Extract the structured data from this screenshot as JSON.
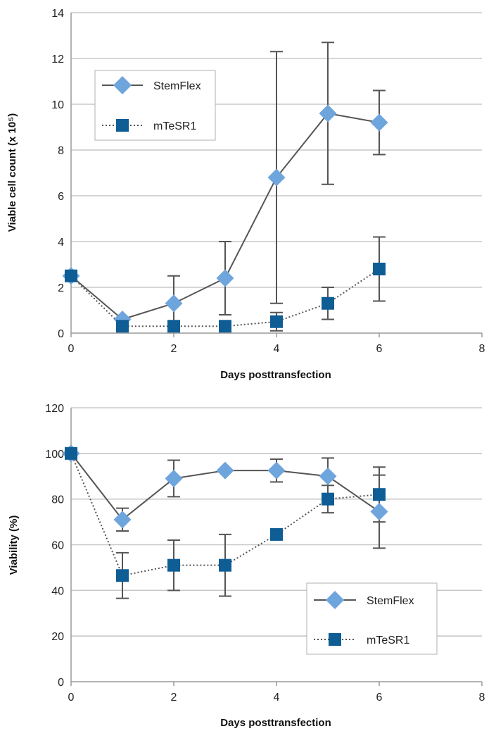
{
  "charts": [
    {
      "xlabel": "Days posttransfection",
      "ylabel": "Viable cell count (x 10⁵)",
      "legend": {
        "stemflex": "StemFlex",
        "mtesr1": "mTeSR1"
      }
    },
    {
      "xlabel": "Days posttransfection",
      "ylabel": "Viability (%)",
      "legend": {
        "stemflex": "StemFlex",
        "mtesr1": "mTeSR1"
      }
    }
  ],
  "chart_data": [
    {
      "type": "line",
      "xlabel": "Days posttransfection",
      "ylabel": "Viable cell count (x 10⁵)",
      "xlim": [
        0,
        8
      ],
      "ylim": [
        0,
        14
      ],
      "x_ticks": [
        0,
        2,
        4,
        6,
        8
      ],
      "y_ticks": [
        0,
        2,
        4,
        6,
        8,
        10,
        12,
        14
      ],
      "grid": "horizontal",
      "legend_position": "top-left",
      "series": [
        {
          "name": "StemFlex",
          "color": "#6fa5dd",
          "line_color": "#555555",
          "line_style": "solid",
          "marker": "diamond",
          "x": [
            0,
            1,
            2,
            3,
            4,
            5,
            6
          ],
          "y": [
            2.5,
            0.6,
            1.3,
            2.4,
            6.8,
            9.6,
            9.2
          ],
          "error": [
            null,
            null,
            1.2,
            1.6,
            5.5,
            3.1,
            1.4
          ]
        },
        {
          "name": "mTeSR1",
          "color": "#0e5d94",
          "line_color": "#555555",
          "line_style": "dotted",
          "marker": "square",
          "x": [
            0,
            1,
            2,
            3,
            4,
            5,
            6
          ],
          "y": [
            2.5,
            0.3,
            0.3,
            0.3,
            0.5,
            1.3,
            2.8
          ],
          "error": [
            null,
            null,
            null,
            null,
            0.4,
            0.7,
            1.4
          ]
        }
      ]
    },
    {
      "type": "line",
      "xlabel": "Days posttransfection",
      "ylabel": "Viability (%)",
      "xlim": [
        0,
        8
      ],
      "ylim": [
        0,
        120
      ],
      "x_ticks": [
        0,
        2,
        4,
        6,
        8
      ],
      "y_ticks": [
        0,
        20,
        40,
        60,
        80,
        100,
        120
      ],
      "grid": "horizontal",
      "legend_position": "bottom-right",
      "series": [
        {
          "name": "StemFlex",
          "color": "#6fa5dd",
          "line_color": "#555555",
          "line_style": "solid",
          "marker": "diamond",
          "x": [
            0,
            1,
            2,
            3,
            4,
            5,
            6
          ],
          "y": [
            100,
            71,
            89,
            92.5,
            92.5,
            90,
            74.5
          ],
          "error": [
            null,
            5,
            8,
            null,
            5,
            8,
            16
          ]
        },
        {
          "name": "mTeSR1",
          "color": "#0e5d94",
          "line_color": "#555555",
          "line_style": "dotted",
          "marker": "square",
          "x": [
            0,
            1,
            2,
            3,
            4,
            5,
            6
          ],
          "y": [
            100,
            46.5,
            51,
            51,
            64.5,
            80,
            82
          ],
          "error": [
            null,
            10,
            11,
            13.5,
            null,
            6,
            12
          ]
        }
      ]
    }
  ]
}
